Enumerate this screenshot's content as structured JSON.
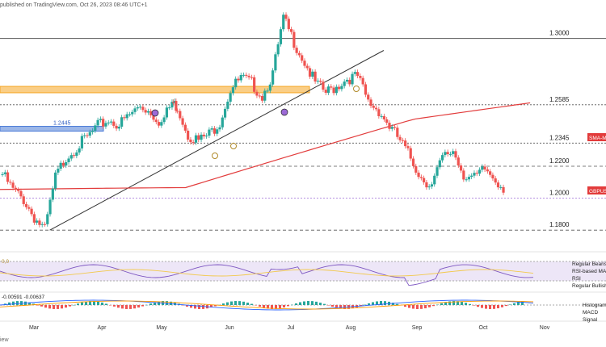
{
  "header": {
    "text": "published on TradingView.com, Oct 26, 2023 08:46 UTC+1"
  },
  "footer": {
    "text": "iew"
  },
  "chart_data": {
    "type": "candlestick",
    "symbol": "GBPUSD",
    "ylim": [
      1.17,
      1.317
    ],
    "x_ticks": [
      "Mar",
      "Apr",
      "May",
      "Jun",
      "Jul",
      "Aug",
      "Sep",
      "Oct",
      "Nov"
    ],
    "levels": [
      {
        "label": "1.3000",
        "value": 1.3,
        "style": "solid"
      },
      {
        "label": "1.2585",
        "value": 1.2585,
        "style": "dotted"
      },
      {
        "label": "1.2345",
        "value": 1.2345,
        "style": "dotted"
      },
      {
        "label": "1.2200",
        "value": 1.22,
        "style": "dashed"
      },
      {
        "label": "1.2000",
        "value": 1.2,
        "style": "dotted"
      },
      {
        "label": "1.1800",
        "value": 1.18,
        "style": "dashed"
      }
    ],
    "zones": [
      {
        "label": "",
        "from": 1.266,
        "to": 1.27,
        "color": "#f5a623"
      },
      {
        "label": "1.2445",
        "from": 1.242,
        "to": 1.245,
        "color": "#4a7bd6"
      }
    ],
    "purple_line": {
      "value": 1.2,
      "color": "#9c6ad6"
    },
    "trendline": {
      "from": {
        "t": 0.085,
        "v": 1.18
      },
      "to": {
        "t": 0.655,
        "v": 1.2925
      }
    },
    "sma_label": "SMA-Ma",
    "sma_color": "#e23b3b",
    "price_tag": "GBPUSI",
    "up_color": "#26a69a",
    "down_color": "#ef5350",
    "candles_seed": [
      [
        0.0,
        1.215
      ],
      [
        0.02,
        1.205
      ],
      [
        0.04,
        1.199
      ],
      [
        0.06,
        1.188
      ],
      [
        0.08,
        1.18
      ],
      [
        0.1,
        1.213
      ],
      [
        0.12,
        1.226
      ],
      [
        0.14,
        1.232
      ],
      [
        0.16,
        1.238
      ],
      [
        0.18,
        1.245
      ],
      [
        0.2,
        1.249
      ],
      [
        0.22,
        1.246
      ],
      [
        0.24,
        1.252
      ],
      [
        0.26,
        1.258
      ],
      [
        0.28,
        1.254
      ],
      [
        0.3,
        1.247
      ],
      [
        0.32,
        1.26
      ],
      [
        0.33,
        1.257
      ],
      [
        0.35,
        1.24
      ],
      [
        0.37,
        1.236
      ],
      [
        0.39,
        1.24
      ],
      [
        0.41,
        1.248
      ],
      [
        0.43,
        1.268
      ],
      [
        0.45,
        1.275
      ],
      [
        0.47,
        1.272
      ],
      [
        0.49,
        1.264
      ],
      [
        0.51,
        1.278
      ],
      [
        0.53,
        1.312
      ],
      [
        0.55,
        1.298
      ],
      [
        0.57,
        1.285
      ],
      [
        0.59,
        1.272
      ],
      [
        0.61,
        1.266
      ],
      [
        0.63,
        1.27
      ],
      [
        0.65,
        1.275
      ],
      [
        0.67,
        1.276
      ],
      [
        0.69,
        1.26
      ],
      [
        0.71,
        1.255
      ],
      [
        0.73,
        1.245
      ],
      [
        0.75,
        1.236
      ],
      [
        0.77,
        1.225
      ],
      [
        0.79,
        1.213
      ],
      [
        0.81,
        1.208
      ],
      [
        0.83,
        1.225
      ],
      [
        0.85,
        1.23
      ],
      [
        0.87,
        1.215
      ],
      [
        0.89,
        1.212
      ],
      [
        0.91,
        1.218
      ],
      [
        0.93,
        1.212
      ],
      [
        0.95,
        1.205
      ]
    ],
    "rsi": {
      "label_left": "0,0",
      "labels_right": [
        "Regular Bearish",
        "RSI-based MA",
        "RSI",
        "Regular Bullish"
      ]
    },
    "macd": {
      "label_left": "-0.00591  -0.00637",
      "labels_right": [
        "Histogram",
        "MACD",
        "Signal"
      ]
    }
  }
}
